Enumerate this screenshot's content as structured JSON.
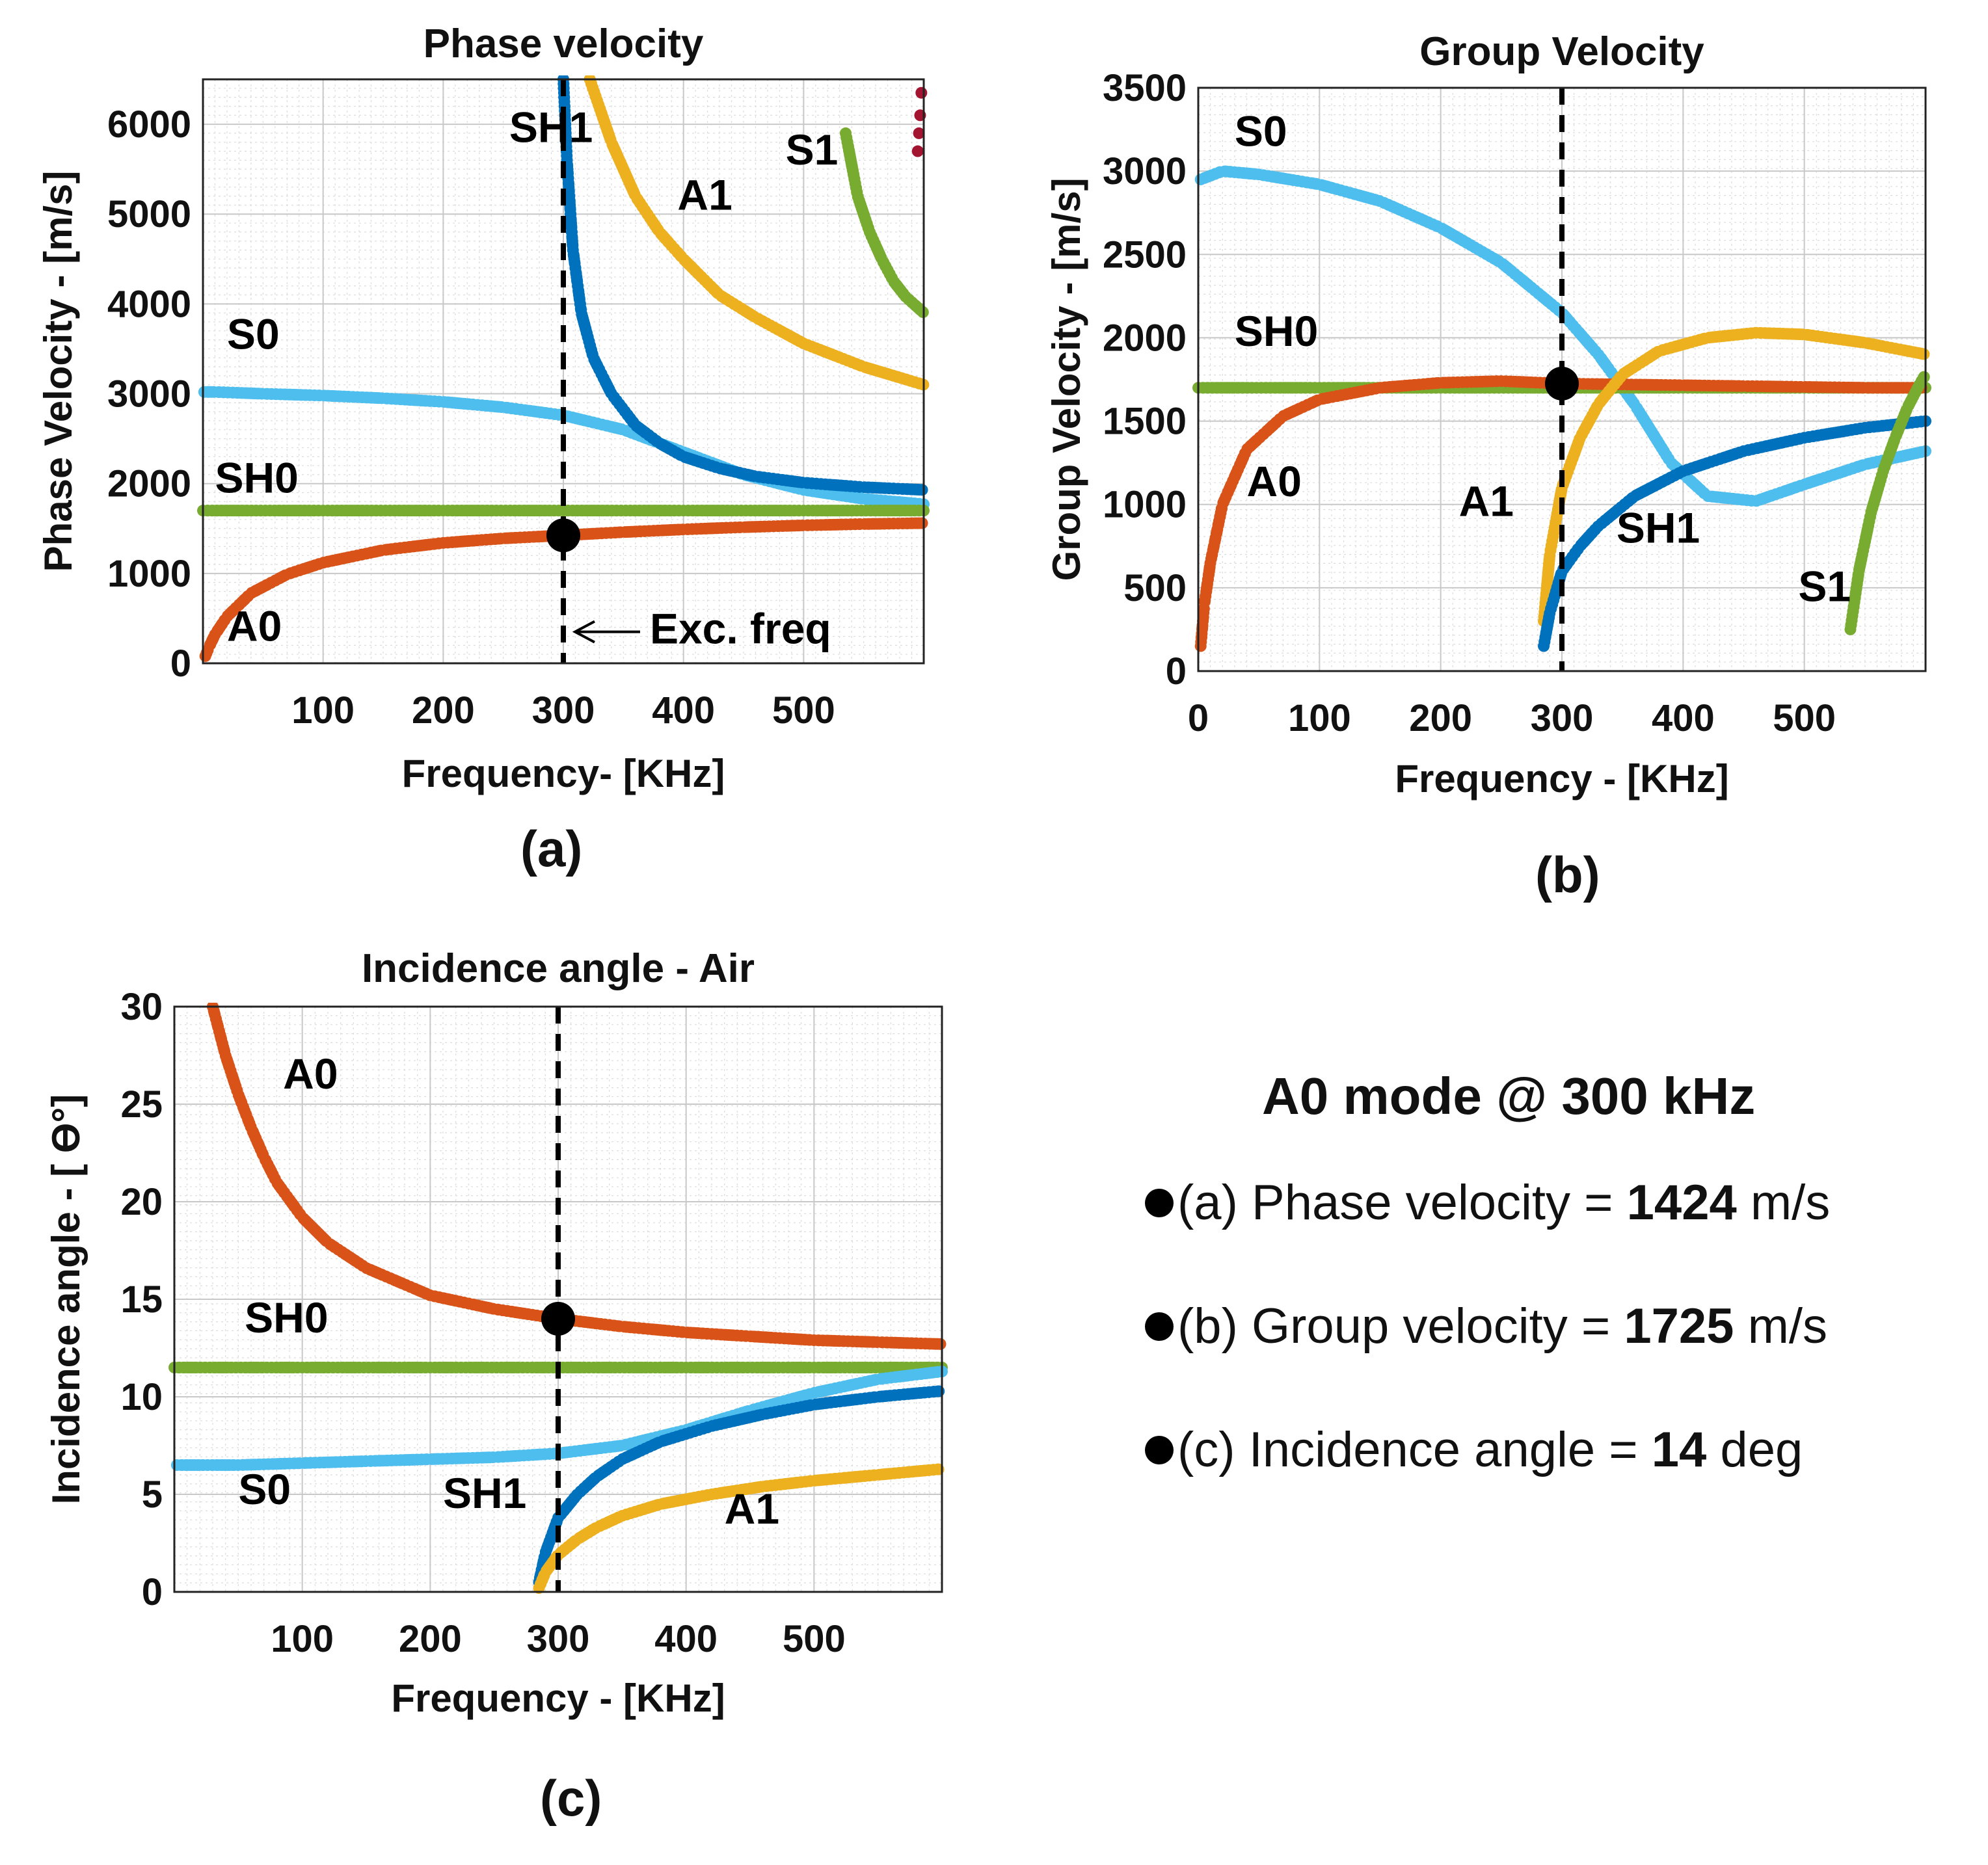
{
  "chart_data": [
    {
      "type": "scatter",
      "title": "Phase velocity",
      "xlabel": "Frequency- [KHz]",
      "ylabel": "Phase Velocity - [m/s]",
      "xlim": [
        0,
        600
      ],
      "ylim": [
        0,
        6500
      ],
      "xticks": [
        100,
        200,
        300,
        400,
        500
      ],
      "yticks": [
        0,
        1000,
        2000,
        3000,
        4000,
        5000,
        6000
      ],
      "grid": true,
      "panel_label": "(a)",
      "series": [
        {
          "name": "A0",
          "color": "#d95319",
          "x": [
            2,
            5,
            10,
            20,
            40,
            70,
            100,
            150,
            200,
            250,
            300,
            350,
            400,
            450,
            500,
            550,
            600
          ],
          "y": [
            80,
            180,
            320,
            520,
            780,
            990,
            1120,
            1260,
            1340,
            1390,
            1424,
            1460,
            1490,
            1515,
            1535,
            1550,
            1560
          ]
        },
        {
          "name": "S0",
          "color": "#4dbeee",
          "x": [
            1,
            10,
            50,
            100,
            150,
            200,
            250,
            300,
            350,
            400,
            450,
            500,
            550,
            600
          ],
          "y": [
            3020,
            3020,
            3000,
            2980,
            2950,
            2910,
            2850,
            2760,
            2600,
            2350,
            2100,
            1930,
            1830,
            1770
          ]
        },
        {
          "name": "SH0",
          "color": "#77ac30",
          "x": [
            0,
            100,
            200,
            300,
            400,
            500,
            600
          ],
          "y": [
            1700,
            1700,
            1700,
            1700,
            1700,
            1700,
            1700
          ]
        },
        {
          "name": "SH1",
          "color": "#0072bd",
          "x": [
            300,
            303,
            308,
            315,
            325,
            340,
            360,
            380,
            400,
            430,
            460,
            500,
            550,
            600
          ],
          "y": [
            6500,
            5600,
            4600,
            3900,
            3400,
            3000,
            2650,
            2450,
            2300,
            2170,
            2080,
            2010,
            1960,
            1930
          ]
        },
        {
          "name": "A1",
          "color": "#edb120",
          "x": [
            322,
            340,
            360,
            380,
            400,
            430,
            460,
            500,
            550,
            600
          ],
          "y": [
            6500,
            5800,
            5200,
            4800,
            4500,
            4100,
            3850,
            3560,
            3300,
            3100
          ]
        },
        {
          "name": "S1",
          "color": "#77ac30",
          "x": [
            535,
            545,
            555,
            565,
            575,
            585,
            600
          ],
          "y": [
            5900,
            5200,
            4800,
            4500,
            4250,
            4080,
            3900
          ]
        },
        {
          "name": "",
          "color": "#a2142f",
          "x": [
            595,
            596,
            597,
            598
          ],
          "y": [
            5700,
            5900,
            6100,
            6350
          ]
        }
      ],
      "annotations": [
        {
          "text": "SH1",
          "x": 255,
          "y": 5800
        },
        {
          "text": "A1",
          "x": 395,
          "y": 5050
        },
        {
          "text": "S1",
          "x": 485,
          "y": 5550
        },
        {
          "text": "S0",
          "x": 20,
          "y": 3500
        },
        {
          "text": "SH0",
          "x": 10,
          "y": 1900
        },
        {
          "text": "A0",
          "x": 20,
          "y": 250
        },
        {
          "text": "Exc. freq",
          "x": 372,
          "y": 220
        },
        {
          "text": "Excitation point",
          "x": 300,
          "y": 1424
        }
      ],
      "vline_x": 300
    },
    {
      "type": "scatter",
      "title": "Group Velocity",
      "xlabel": "Frequency - [KHz]",
      "ylabel": "Group Velocity - [m/s]",
      "xlim": [
        0,
        600
      ],
      "ylim": [
        0,
        3500
      ],
      "xticks": [
        0,
        100,
        200,
        300,
        400,
        500
      ],
      "yticks": [
        0,
        500,
        1000,
        1500,
        2000,
        2500,
        3000,
        3500
      ],
      "grid": true,
      "panel_label": "(b)",
      "series": [
        {
          "name": "S0",
          "color": "#4dbeee",
          "x": [
            2,
            20,
            50,
            100,
            150,
            200,
            250,
            300,
            330,
            360,
            390,
            420,
            460,
            500,
            550,
            600
          ],
          "y": [
            2950,
            3000,
            2980,
            2920,
            2820,
            2660,
            2450,
            2150,
            1900,
            1600,
            1250,
            1050,
            1020,
            1120,
            1240,
            1320
          ]
        },
        {
          "name": "SH0",
          "color": "#77ac30",
          "x": [
            0,
            100,
            200,
            300,
            400,
            500,
            600
          ],
          "y": [
            1700,
            1700,
            1700,
            1700,
            1700,
            1700,
            1700
          ]
        },
        {
          "name": "A0",
          "color": "#d95319",
          "x": [
            2,
            5,
            10,
            20,
            40,
            70,
            100,
            150,
            200,
            250,
            300,
            350,
            400,
            450,
            500,
            550,
            600
          ],
          "y": [
            150,
            400,
            650,
            1000,
            1330,
            1530,
            1630,
            1700,
            1730,
            1740,
            1725,
            1720,
            1715,
            1710,
            1705,
            1700,
            1700
          ]
        },
        {
          "name": "A1",
          "color": "#edb120",
          "x": [
            285,
            290,
            300,
            315,
            330,
            350,
            380,
            420,
            460,
            500,
            550,
            600
          ],
          "y": [
            300,
            700,
            1100,
            1400,
            1600,
            1780,
            1920,
            2000,
            2030,
            2020,
            1970,
            1900
          ]
        },
        {
          "name": "SH1",
          "color": "#0072bd",
          "x": [
            285,
            290,
            300,
            315,
            330,
            360,
            400,
            450,
            500,
            550,
            600
          ],
          "y": [
            150,
            350,
            600,
            750,
            870,
            1050,
            1200,
            1320,
            1400,
            1460,
            1500
          ]
        },
        {
          "name": "S1",
          "color": "#77ac30",
          "x": [
            538,
            545,
            555,
            565,
            575,
            585,
            595,
            600
          ],
          "y": [
            250,
            600,
            950,
            1200,
            1400,
            1580,
            1720,
            1780
          ]
        }
      ],
      "annotations": [
        {
          "text": "S0",
          "x": 30,
          "y": 3150
        },
        {
          "text": "SH0",
          "x": 30,
          "y": 1950
        },
        {
          "text": "A0",
          "x": 40,
          "y": 1050
        },
        {
          "text": "A1",
          "x": 215,
          "y": 930
        },
        {
          "text": "SH1",
          "x": 345,
          "y": 770
        },
        {
          "text": "S1",
          "x": 495,
          "y": 420
        },
        {
          "text": "Excitation point",
          "x": 300,
          "y": 1725
        }
      ],
      "vline_x": 300
    },
    {
      "type": "scatter",
      "title": "Incidence angle - Air",
      "xlabel": "Frequency - [KHz]",
      "ylabel": "Incidence angle - [ ϴ°]",
      "xlim": [
        0,
        600
      ],
      "ylim": [
        0,
        30
      ],
      "xticks": [
        100,
        200,
        300,
        400,
        500
      ],
      "yticks": [
        0,
        5,
        10,
        15,
        20,
        25,
        30
      ],
      "grid": true,
      "panel_label": "(c)",
      "series": [
        {
          "name": "A0",
          "color": "#d95319",
          "x": [
            30,
            40,
            50,
            60,
            70,
            80,
            100,
            120,
            150,
            200,
            250,
            300,
            350,
            400,
            450,
            500,
            550,
            600
          ],
          "y": [
            30,
            27.5,
            25.5,
            23.8,
            22.3,
            21.0,
            19.2,
            17.9,
            16.6,
            15.2,
            14.5,
            14.0,
            13.6,
            13.3,
            13.1,
            12.9,
            12.8,
            12.7
          ]
        },
        {
          "name": "SH0",
          "color": "#77ac30",
          "x": [
            0,
            100,
            200,
            300,
            400,
            500,
            600
          ],
          "y": [
            11.5,
            11.5,
            11.5,
            11.5,
            11.5,
            11.5,
            11.5
          ]
        },
        {
          "name": "S0",
          "color": "#4dbeee",
          "x": [
            2,
            50,
            100,
            150,
            200,
            250,
            300,
            350,
            400,
            450,
            500,
            550,
            600
          ],
          "y": [
            6.5,
            6.5,
            6.6,
            6.7,
            6.8,
            6.9,
            7.1,
            7.5,
            8.3,
            9.3,
            10.2,
            10.9,
            11.3
          ]
        },
        {
          "name": "SH1",
          "color": "#0072bd",
          "x": [
            285,
            290,
            300,
            315,
            330,
            350,
            380,
            420,
            460,
            500,
            550,
            600
          ],
          "y": [
            0.5,
            2.0,
            3.8,
            5.0,
            5.9,
            6.8,
            7.7,
            8.5,
            9.1,
            9.6,
            10.0,
            10.3
          ]
        },
        {
          "name": "A1",
          "color": "#edb120",
          "x": [
            285,
            290,
            300,
            315,
            330,
            350,
            380,
            420,
            460,
            500,
            550,
            600
          ],
          "y": [
            0.2,
            1.0,
            1.9,
            2.7,
            3.3,
            3.9,
            4.5,
            5.0,
            5.4,
            5.7,
            6.0,
            6.3
          ]
        }
      ],
      "annotations": [
        {
          "text": "A0",
          "x": 85,
          "y": 25.8
        },
        {
          "text": "SH0",
          "x": 55,
          "y": 13.3
        },
        {
          "text": "S0",
          "x": 50,
          "y": 4.5
        },
        {
          "text": "SH1",
          "x": 210,
          "y": 4.3
        },
        {
          "text": "A1",
          "x": 430,
          "y": 3.5
        },
        {
          "text": "Excitation point",
          "x": 300,
          "y": 14
        }
      ],
      "vline_x": 300
    }
  ],
  "summary": {
    "heading": "A0 mode @ 300 kHz",
    "rows": [
      {
        "prefix": "(a)  Phase velocity = ",
        "value": "1424",
        "unit": " m/s"
      },
      {
        "prefix": "(b)  Group velocity = ",
        "value": "1725",
        "unit": " m/s"
      },
      {
        "prefix": "(c)  Incidence angle = ",
        "value": "14",
        "unit": " deg"
      }
    ]
  },
  "colors": {
    "vline": "#000000",
    "marker": "#000000",
    "grid": "#c8c8c8"
  }
}
